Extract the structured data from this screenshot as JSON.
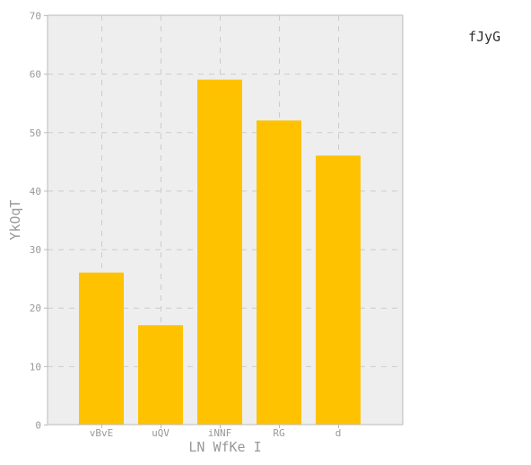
{
  "chart_data": {
    "type": "bar",
    "categories": [
      "vBvE",
      "uQV",
      "iNNF",
      "RG",
      "d"
    ],
    "series": [
      {
        "name": "fJyG",
        "values": [
          26,
          17,
          59,
          52,
          46
        ]
      }
    ],
    "xlabel": "LN WfKe I",
    "ylabel": "YkOqT",
    "ylim": [
      0,
      70
    ],
    "yticks": [
      0,
      10,
      20,
      30,
      40,
      50,
      60,
      70
    ],
    "grid": true,
    "legend": "top-right",
    "colors": {
      "bar": "#ffc200",
      "plot_background": "#eeeeee",
      "grid": "#cccccc",
      "axis": "#bbbbbb",
      "tick_text": "#999999",
      "legend_text": "#333333"
    }
  }
}
